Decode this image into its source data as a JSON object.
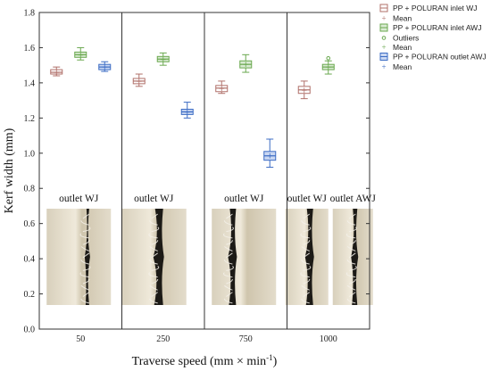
{
  "chart_data": {
    "type": "box",
    "categories": [
      "50",
      "250",
      "750",
      "1000"
    ],
    "xlabel": "Traverse speed (mm × min",
    "xlabel_sup": "-1",
    "xlabel_close": ")",
    "ylabel": "Kerf width (mm)",
    "ylim": [
      0.0,
      1.8
    ],
    "yticks": [
      "0.0",
      "0.2",
      "0.4",
      "0.6",
      "0.8",
      "1.0",
      "1.2",
      "1.4",
      "1.6",
      "1.8"
    ],
    "grid": false,
    "legend_position": "top-right, outside",
    "series": [
      {
        "name": "PP + POLURAN inlet WJ",
        "color": "#b0706a",
        "fill": "#ffffff",
        "boxes": [
          {
            "category": "50",
            "whisker_low": 1.44,
            "q1": 1.45,
            "median": 1.46,
            "q3": 1.475,
            "whisker_high": 1.49,
            "mean": 1.46
          },
          {
            "category": "250",
            "whisker_low": 1.38,
            "q1": 1.395,
            "median": 1.41,
            "q3": 1.425,
            "whisker_high": 1.45,
            "mean": 1.41
          },
          {
            "category": "750",
            "whisker_low": 1.34,
            "q1": 1.35,
            "median": 1.37,
            "q3": 1.385,
            "whisker_high": 1.41,
            "mean": 1.37
          },
          {
            "category": "1000",
            "whisker_low": 1.31,
            "q1": 1.34,
            "median": 1.36,
            "q3": 1.38,
            "whisker_high": 1.41,
            "mean": 1.36
          }
        ]
      },
      {
        "name": "PP + POLURAN inlet AWJ",
        "color": "#6aa84f",
        "fill": "#d9ead3",
        "boxes": [
          {
            "category": "50",
            "whisker_low": 1.53,
            "q1": 1.545,
            "median": 1.56,
            "q3": 1.575,
            "whisker_high": 1.6,
            "mean": 1.56
          },
          {
            "category": "250",
            "whisker_low": 1.5,
            "q1": 1.52,
            "median": 1.535,
            "q3": 1.55,
            "whisker_high": 1.57,
            "mean": 1.535
          },
          {
            "category": "750",
            "whisker_low": 1.46,
            "q1": 1.485,
            "median": 1.505,
            "q3": 1.525,
            "whisker_high": 1.56,
            "mean": 1.505
          },
          {
            "category": "1000",
            "whisker_low": 1.45,
            "q1": 1.475,
            "median": 1.49,
            "q3": 1.505,
            "whisker_high": 1.525,
            "mean": 1.49,
            "outliers": [
              1.54
            ]
          }
        ]
      },
      {
        "name": "PP + POLURAN outlet AWJ",
        "color": "#3c6cc4",
        "fill": "#c9d7f2",
        "boxes": [
          {
            "category": "50",
            "whisker_low": 1.465,
            "q1": 1.475,
            "median": 1.49,
            "q3": 1.505,
            "whisker_high": 1.52,
            "mean": 1.49
          },
          {
            "category": "250",
            "whisker_low": 1.2,
            "q1": 1.22,
            "median": 1.235,
            "q3": 1.25,
            "whisker_high": 1.29,
            "mean": 1.235
          },
          {
            "category": "750",
            "whisker_low": 0.92,
            "q1": 0.96,
            "median": 0.985,
            "q3": 1.01,
            "whisker_high": 1.08,
            "mean": 0.985
          }
        ]
      }
    ],
    "legend_entries": [
      {
        "label": "PP + POLURAN inlet WJ",
        "kind": "box",
        "series": 0
      },
      {
        "label": "Mean",
        "kind": "mean",
        "series": 0
      },
      {
        "label": "PP + POLURAN inlet AWJ",
        "kind": "box",
        "series": 1
      },
      {
        "label": "Outliers",
        "kind": "outlier",
        "series": 1
      },
      {
        "label": "Mean",
        "kind": "mean",
        "series": 1
      },
      {
        "label": "PP + POLURAN outlet AWJ",
        "kind": "box",
        "series": 2
      },
      {
        "label": "Mean",
        "kind": "mean",
        "series": 2
      }
    ],
    "photo_labels": [
      {
        "category": "50",
        "text": "outlet WJ"
      },
      {
        "category": "250",
        "text": "outlet WJ"
      },
      {
        "category": "750",
        "text": "outlet WJ"
      },
      {
        "category": "1000",
        "text": "outlet WJ"
      },
      {
        "category": "1000",
        "text": "outlet AWJ"
      }
    ]
  }
}
